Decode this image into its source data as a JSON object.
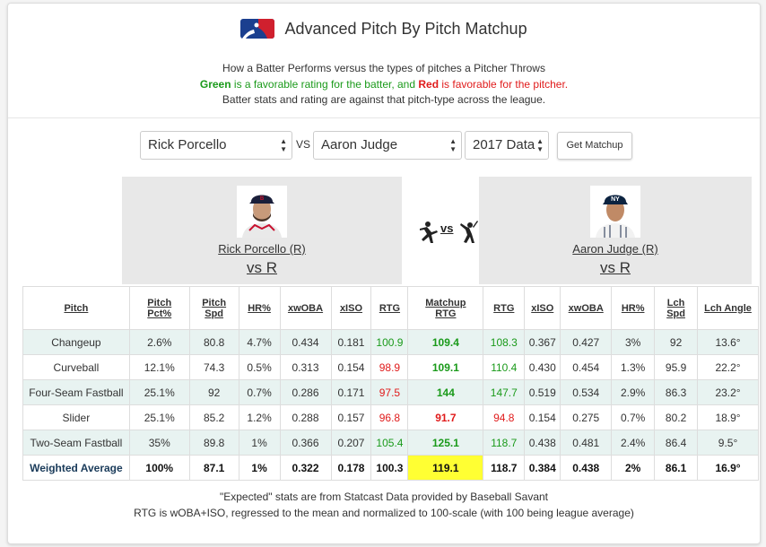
{
  "title": "Advanced Pitch By Pitch Matchup",
  "description": {
    "line1": "How a Batter Performs versus the types of pitches a Pitcher Throws",
    "green_word": "Green",
    "line2_mid": " is a favorable rating for the batter, and ",
    "red_word": "Red",
    "line2_end": " is favorable for the pitcher.",
    "line3": "Batter stats and rating are against that pitch-type across the league."
  },
  "controls": {
    "pitcher_select": "Rick Porcello",
    "vs_label": "VS",
    "batter_select": "Aaron Judge",
    "year_select": "2017 Data",
    "get_button": "Get Matchup"
  },
  "pitcher": {
    "name": "Rick Porcello (R)",
    "vs": "vs R"
  },
  "batter": {
    "name": "Aaron Judge (R)",
    "vs": "vs R"
  },
  "matchup_icon_text": "vs",
  "headers": [
    "Pitch",
    "Pitch Pct%",
    "Pitch Spd",
    "HR%",
    "xwOBA",
    "xISO",
    "RTG",
    "Matchup RTG",
    "RTG",
    "xISO",
    "xwOBA",
    "HR%",
    "Lch Spd",
    "Lch Angle"
  ],
  "header_lines": [
    [
      "Pitch"
    ],
    [
      "Pitch",
      "Pct%"
    ],
    [
      "Pitch",
      "Spd"
    ],
    [
      "HR%"
    ],
    [
      "xwOBA"
    ],
    [
      "xISO"
    ],
    [
      "RTG"
    ],
    [
      "Matchup",
      "RTG"
    ],
    [
      "RTG"
    ],
    [
      "xISO"
    ],
    [
      "xwOBA"
    ],
    [
      "HR%"
    ],
    [
      "Lch",
      "Spd"
    ],
    [
      "Lch Angle"
    ]
  ],
  "rows": [
    {
      "pitch": "Changeup",
      "pct": "2.6%",
      "spd": "80.8",
      "hr": "4.7%",
      "xwoba": "0.434",
      "xiso": "0.181",
      "rtg": "100.9",
      "rtg_color": "green",
      "matchup": "109.4",
      "matchup_color": "green",
      "b_rtg": "108.3",
      "b_rtg_color": "green",
      "b_xiso": "0.367",
      "b_xwoba": "0.427",
      "b_hr": "3%",
      "lch_spd": "92",
      "lch_angle": "13.6°"
    },
    {
      "pitch": "Curveball",
      "pct": "12.1%",
      "spd": "74.3",
      "hr": "0.5%",
      "xwoba": "0.313",
      "xiso": "0.154",
      "rtg": "98.9",
      "rtg_color": "red",
      "matchup": "109.1",
      "matchup_color": "green",
      "b_rtg": "110.4",
      "b_rtg_color": "green",
      "b_xiso": "0.430",
      "b_xwoba": "0.454",
      "b_hr": "1.3%",
      "lch_spd": "95.9",
      "lch_angle": "22.2°"
    },
    {
      "pitch": "Four-Seam Fastball",
      "pct": "25.1%",
      "spd": "92",
      "hr": "0.7%",
      "xwoba": "0.286",
      "xiso": "0.171",
      "rtg": "97.5",
      "rtg_color": "red",
      "matchup": "144",
      "matchup_color": "green",
      "b_rtg": "147.7",
      "b_rtg_color": "green",
      "b_xiso": "0.519",
      "b_xwoba": "0.534",
      "b_hr": "2.9%",
      "lch_spd": "86.3",
      "lch_angle": "23.2°"
    },
    {
      "pitch": "Slider",
      "pct": "25.1%",
      "spd": "85.2",
      "hr": "1.2%",
      "xwoba": "0.288",
      "xiso": "0.157",
      "rtg": "96.8",
      "rtg_color": "red",
      "matchup": "91.7",
      "matchup_color": "red",
      "b_rtg": "94.8",
      "b_rtg_color": "red",
      "b_xiso": "0.154",
      "b_xwoba": "0.275",
      "b_hr": "0.7%",
      "lch_spd": "80.2",
      "lch_angle": "18.9°"
    },
    {
      "pitch": "Two-Seam Fastball",
      "pct": "35%",
      "spd": "89.8",
      "hr": "1%",
      "xwoba": "0.366",
      "xiso": "0.207",
      "rtg": "105.4",
      "rtg_color": "green",
      "matchup": "125.1",
      "matchup_color": "green",
      "b_rtg": "118.7",
      "b_rtg_color": "green",
      "b_xiso": "0.438",
      "b_xwoba": "0.481",
      "b_hr": "2.4%",
      "lch_spd": "86.4",
      "lch_angle": "9.5°"
    }
  ],
  "average": {
    "pitch": "Weighted Average",
    "pct": "100%",
    "spd": "87.1",
    "hr": "1%",
    "xwoba": "0.322",
    "xiso": "0.178",
    "rtg": "100.3",
    "matchup": "119.1",
    "matchup_highlight": "#ffff33",
    "b_rtg": "118.7",
    "b_xiso": "0.384",
    "b_xwoba": "0.438",
    "b_hr": "2%",
    "lch_spd": "86.1",
    "lch_angle": "16.9°"
  },
  "footer": {
    "line1": "\"Expected\" stats are from Statcast Data provided by Baseball Savant",
    "line2": "RTG is wOBA+ISO, regressed to the mean and normalized to 100-scale (with 100 being league average)"
  },
  "colors": {
    "green": "#1a9a1a",
    "red": "#e01b1b",
    "row_alt": "#e8f3f1",
    "panel": "#e8e8e8",
    "mlb_blue": "#1b3f8f",
    "mlb_red": "#d0202e"
  }
}
